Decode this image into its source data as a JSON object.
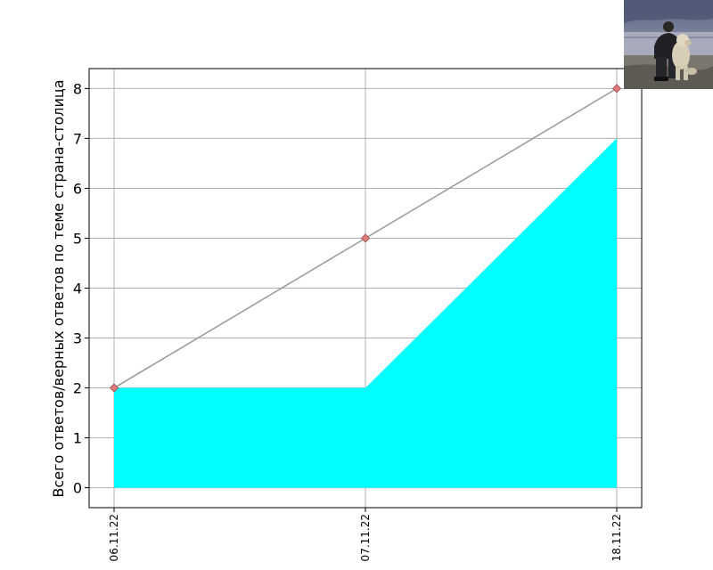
{
  "chart_data": {
    "type": "line",
    "title": "",
    "xlabel": "",
    "ylabel": "Всего ответов/верных ответов по теме страна-столица",
    "categories": [
      "06.11.22",
      "07.11.22",
      "18.11.22"
    ],
    "series": [
      {
        "kind": "line",
        "values": [
          2,
          5,
          8
        ],
        "color": "#999999",
        "marker": "diamond",
        "marker_color": "#e07b7b"
      },
      {
        "kind": "area",
        "values": [
          2,
          2,
          7
        ],
        "color": "#00ffff"
      }
    ],
    "ylim": [
      -0.4,
      8.4
    ],
    "yticks": [
      0,
      1,
      2,
      3,
      4,
      5,
      6,
      7,
      8
    ],
    "grid": true
  },
  "photo": {
    "subject": "man crouching with a white dog on a shore"
  }
}
